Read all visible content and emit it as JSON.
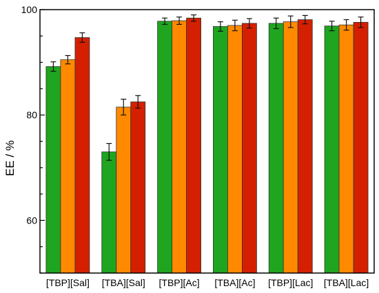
{
  "chart_data": {
    "type": "bar",
    "title": "",
    "xlabel": "",
    "ylabel": "EE / %",
    "ylim": [
      50,
      100
    ],
    "yticks": [
      60,
      80,
      100
    ],
    "grid": false,
    "legend": "none",
    "categories": [
      "[TBP][Sal]",
      "[TBA][Sal]",
      "[TBP][Ac]",
      "[TBA][Ac]",
      "[TBP][Lac]",
      "[TBA][Lac]"
    ],
    "series": [
      {
        "color": "#1fa51f",
        "values": [
          89.2,
          73.0,
          97.8,
          96.8,
          97.4,
          96.9
        ],
        "errors": [
          0.9,
          1.6,
          0.6,
          0.9,
          1.0,
          0.9
        ]
      },
      {
        "color": "#ff8a00",
        "values": [
          90.5,
          81.5,
          97.9,
          97.0,
          97.7,
          97.1
        ],
        "errors": [
          0.8,
          1.5,
          0.7,
          1.0,
          1.1,
          1.0
        ]
      },
      {
        "color": "#d42000",
        "values": [
          94.7,
          82.5,
          98.4,
          97.4,
          98.1,
          97.6
        ],
        "errors": [
          0.9,
          1.2,
          0.6,
          0.9,
          0.8,
          1.0
        ]
      }
    ]
  }
}
